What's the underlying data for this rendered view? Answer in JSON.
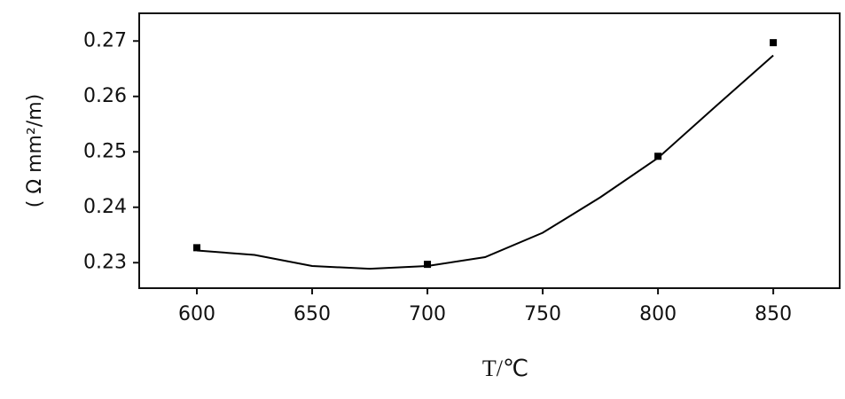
{
  "chart_data": {
    "type": "line",
    "ylabel": "( Ω  mm²/m)",
    "xlabel": "T/℃",
    "xlim": [
      575,
      878.8
    ],
    "xticks": [
      600,
      650,
      700,
      750,
      800,
      850
    ],
    "ylim": [
      0.2254,
      0.275
    ],
    "yticks": [
      0.23,
      0.24,
      0.25,
      0.26,
      0.27
    ],
    "grid": false,
    "series": [
      {
        "x": [
          600,
          625,
          650,
          675,
          700,
          725,
          750,
          775,
          800,
          825,
          850
        ],
        "values": [
          0.2322,
          0.2314,
          0.2294,
          0.2289,
          0.2294,
          0.231,
          0.2354,
          0.2418,
          0.2489,
          0.2582,
          0.2674
        ],
        "color": "#000000",
        "line": true,
        "marker": "none"
      },
      {
        "x": [
          600,
          700,
          800,
          850
        ],
        "values": [
          0.2327,
          0.2297,
          0.2492,
          0.2697
        ],
        "color": "#000000",
        "line": false,
        "marker": "square"
      }
    ]
  }
}
